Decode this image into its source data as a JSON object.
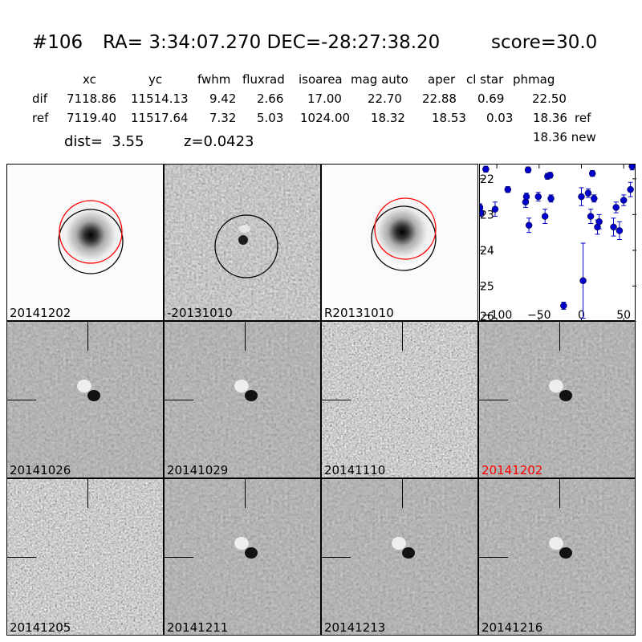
{
  "header": {
    "id": "#106",
    "coords": "RA= 3:34:07.270 DEC=-28:27:38.20",
    "score": "score=30.0",
    "table": {
      "columns": [
        "xc",
        "yc",
        "fwhm",
        "fluxrad",
        "isoarea",
        "mag auto",
        "aper",
        "cl star",
        "phmag"
      ],
      "rows": [
        {
          "label": "dif",
          "values": [
            "7118.86",
            "11514.13",
            "9.42",
            "2.66",
            "17.00",
            "22.70",
            "22.88",
            "0.69",
            "22.50"
          ],
          "suffix": ""
        },
        {
          "label": "ref",
          "values": [
            "7119.40",
            "11517.64",
            "7.32",
            "5.03",
            "1024.00",
            "18.32",
            "18.53",
            "0.03",
            "18.36"
          ],
          "suffix": "ref"
        }
      ],
      "extra": "18.36 new"
    },
    "dist": "dist=  3.55",
    "z": "z=0.0423"
  },
  "stamps": {
    "row1": [
      {
        "label": "20141202",
        "kind": "galaxy",
        "circles": [
          "red",
          "black"
        ]
      },
      {
        "label": "-20131010",
        "kind": "diff",
        "circles": [
          "black"
        ]
      },
      {
        "label": "R20131010",
        "kind": "galaxy",
        "circles": [
          "red",
          "black"
        ]
      }
    ],
    "grid": [
      {
        "label": "20141026",
        "kind": "dipole",
        "highlight": false
      },
      {
        "label": "20141029",
        "kind": "dipole",
        "highlight": false
      },
      {
        "label": "20141110",
        "kind": "noise",
        "highlight": false
      },
      {
        "label": "20141202",
        "kind": "dipole",
        "highlight": true
      },
      {
        "label": "20141205",
        "kind": "noise",
        "highlight": false
      },
      {
        "label": "20141211",
        "kind": "dipole",
        "highlight": false
      },
      {
        "label": "20141213",
        "kind": "dipole",
        "highlight": false
      },
      {
        "label": "20141216",
        "kind": "dipole",
        "highlight": false
      }
    ]
  },
  "colors": {
    "highlight_label": "#ff0000",
    "red_circle": "#ff0000",
    "points": "#0000cc"
  },
  "chart_data": {
    "type": "scatter",
    "title": "",
    "xlabel": "",
    "ylabel": "",
    "xlim": [
      -120,
      65
    ],
    "ylim": [
      26,
      21.6
    ],
    "inverted_y": true,
    "x_ticks": [
      -100,
      -50,
      0,
      50
    ],
    "x_tick_labels": [
      "−100",
      "−50",
      "0",
      "50"
    ],
    "y_ticks": [
      22,
      23,
      24,
      25,
      26
    ],
    "y_tick_labels": [
      "22",
      "23",
      "24",
      "25",
      "26"
    ],
    "grid": false,
    "series": [
      {
        "points": [
          {
            "x": -120,
            "y": 22.8,
            "err": 0.1
          },
          {
            "x": -119,
            "y": 22.95,
            "err": 0.1
          },
          {
            "x": -113,
            "y": 21.73,
            "err": 0.08
          },
          {
            "x": -102,
            "y": 22.85,
            "err": 0.2
          },
          {
            "x": -87,
            "y": 22.3,
            "err": 0.08
          },
          {
            "x": -66,
            "y": 22.65,
            "err": 0.15
          },
          {
            "x": -65,
            "y": 22.5,
            "err": 0.1
          },
          {
            "x": -63,
            "y": 21.75,
            "err": 0.08
          },
          {
            "x": -62,
            "y": 23.3,
            "err": 0.2
          },
          {
            "x": -51,
            "y": 22.5,
            "err": 0.12
          },
          {
            "x": -43,
            "y": 23.05,
            "err": 0.2
          },
          {
            "x": -40,
            "y": 21.93,
            "err": 0.08
          },
          {
            "x": -37,
            "y": 21.9,
            "err": 0.08
          },
          {
            "x": -36,
            "y": 22.55,
            "err": 0.1
          },
          {
            "x": -21,
            "y": 25.55,
            "err": 0.1
          },
          {
            "x": 0,
            "y": 22.5,
            "err": 0.25
          },
          {
            "x": 2,
            "y": 24.85,
            "err": 1.05
          },
          {
            "x": 8,
            "y": 22.4,
            "err": 0.12
          },
          {
            "x": 11,
            "y": 23.05,
            "err": 0.2
          },
          {
            "x": 13,
            "y": 21.85,
            "err": 0.08
          },
          {
            "x": 15,
            "y": 22.55,
            "err": 0.1
          },
          {
            "x": 19,
            "y": 23.35,
            "err": 0.2
          },
          {
            "x": 21,
            "y": 23.2,
            "err": 0.2
          },
          {
            "x": 38,
            "y": 23.35,
            "err": 0.25
          },
          {
            "x": 41,
            "y": 22.8,
            "err": 0.15
          },
          {
            "x": 45,
            "y": 23.45,
            "err": 0.25
          },
          {
            "x": 50,
            "y": 22.6,
            "err": 0.15
          },
          {
            "x": 58,
            "y": 22.3,
            "err": 0.2
          },
          {
            "x": 60,
            "y": 21.65,
            "err": 0.1
          }
        ]
      }
    ]
  }
}
